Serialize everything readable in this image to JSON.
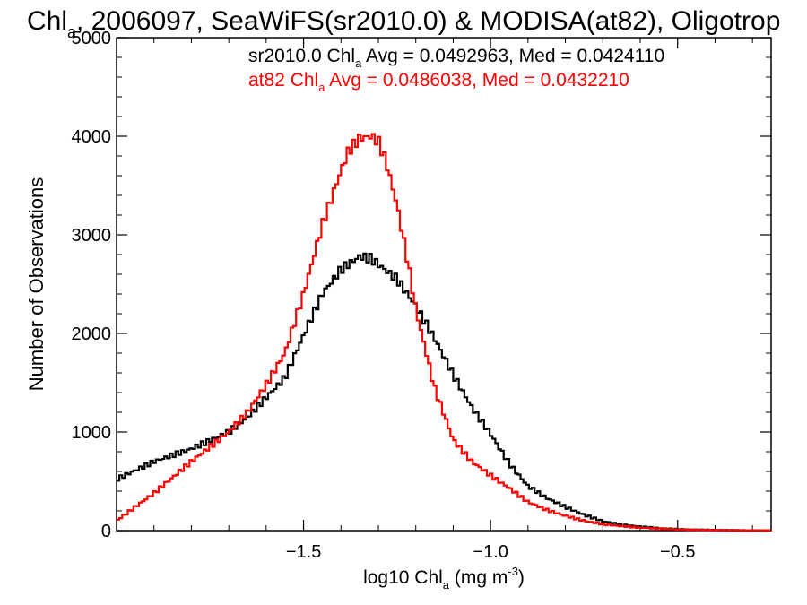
{
  "chart_data": {
    "type": "line",
    "step": true,
    "title": {
      "main": "Chl",
      "sub": "a",
      "rest": ", 2006097, SeaWiFS(sr2010.0) & MODISA(at82), Oligotrop"
    },
    "xlabel": {
      "main": "log10 Chl",
      "sub": "a",
      "rest": " (mg m",
      "sup": "-3",
      "close": ")"
    },
    "ylabel": "Number of Observations",
    "xlim": [
      -2.0,
      -0.25
    ],
    "ylim": [
      0,
      5000
    ],
    "xticks": [
      -1.5,
      -1.0,
      -0.5
    ],
    "xtick_labels": [
      "−1.5",
      "−1.0",
      "−0.5"
    ],
    "yticks": [
      0,
      1000,
      2000,
      3000,
      4000,
      5000
    ],
    "ytick_labels": [
      "0",
      "1000",
      "2000",
      "3000",
      "4000",
      "5000"
    ],
    "grid": false,
    "legend_position": "top-right",
    "annotations": [
      {
        "prefix": "sr2010.0 Chl",
        "sub": "a",
        "rest": " Avg = 0.0492963, Med = 0.0424110",
        "color": "#000000"
      },
      {
        "prefix": "at82 Chl",
        "sub": "a",
        "rest": " Avg = 0.0486038, Med = 0.0432210",
        "color": "#ff0000"
      }
    ],
    "series": [
      {
        "color": "#000000",
        "x": [
          -2.0,
          -1.9,
          -1.8,
          -1.7,
          -1.65,
          -1.6,
          -1.55,
          -1.5,
          -1.45,
          -1.4,
          -1.35,
          -1.32,
          -1.3,
          -1.25,
          -1.2,
          -1.15,
          -1.1,
          -1.05,
          -1.0,
          -0.95,
          -0.9,
          -0.85,
          -0.8,
          -0.75,
          -0.7,
          -0.65,
          -0.6,
          -0.55,
          -0.5,
          -0.45,
          -0.4,
          -0.35,
          -0.3,
          -0.25
        ],
        "y": [
          520,
          700,
          830,
          1000,
          1150,
          1350,
          1550,
          1980,
          2400,
          2650,
          2780,
          2760,
          2700,
          2550,
          2280,
          1950,
          1580,
          1250,
          980,
          680,
          450,
          330,
          240,
          160,
          95,
          60,
          40,
          25,
          15,
          10,
          7,
          5,
          3,
          2
        ]
      },
      {
        "color": "#ff0000",
        "x": [
          -2.0,
          -1.9,
          -1.8,
          -1.7,
          -1.65,
          -1.6,
          -1.55,
          -1.5,
          -1.45,
          -1.4,
          -1.38,
          -1.35,
          -1.32,
          -1.3,
          -1.28,
          -1.25,
          -1.22,
          -1.2,
          -1.15,
          -1.1,
          -1.05,
          -1.0,
          -0.95,
          -0.9,
          -0.85,
          -0.8,
          -0.75,
          -0.7,
          -0.65,
          -0.6,
          -0.55,
          -0.5,
          -0.45,
          -0.4,
          -0.35,
          -0.3,
          -0.25
        ],
        "y": [
          100,
          380,
          700,
          1000,
          1200,
          1480,
          1800,
          2400,
          3100,
          3650,
          3850,
          3980,
          4000,
          3950,
          3750,
          3300,
          2700,
          2250,
          1450,
          920,
          700,
          560,
          430,
          290,
          210,
          150,
          100,
          65,
          45,
          30,
          20,
          12,
          8,
          5,
          3,
          2,
          1
        ]
      }
    ]
  }
}
